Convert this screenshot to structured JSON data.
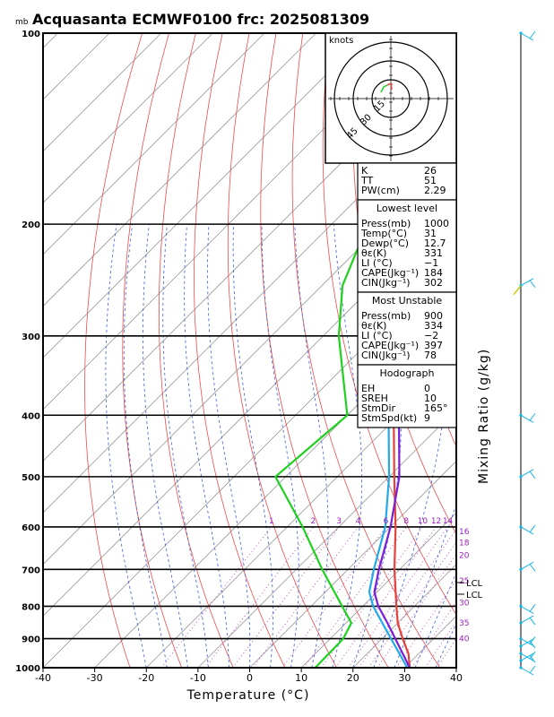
{
  "title": "Acquasanta ECMWF0100  frc: 2025081309",
  "pressure_unit": "mb",
  "x_axis_title": "Temperature (°C)",
  "side_axis_title": "Mixing Ratio  (g/kg)",
  "hodograph": {
    "unit_label": "knots",
    "ring_labels": [
      "15",
      "30",
      "45"
    ]
  },
  "lcl_labels": [
    "LCL",
    "LCL"
  ],
  "indices": {
    "top": [
      {
        "k": "K",
        "v": "26"
      },
      {
        "k": "TT",
        "v": "51"
      },
      {
        "k": "PW(cm)",
        "v": "2.29"
      }
    ],
    "sections": [
      {
        "header": "Lowest level",
        "rows": [
          {
            "k": "Press(mb)",
            "v": "1000"
          },
          {
            "k": "Temp(°C)",
            "v": "31"
          },
          {
            "k": "Dewp(°C)",
            "v": "12.7"
          },
          {
            "k": "θε(K)",
            "v": "331"
          },
          {
            "k": "LI (°C)",
            "v": "−1"
          },
          {
            "k": "CAPE(Jkg⁻¹)",
            "v": "184"
          },
          {
            "k": "CIN(Jkg⁻¹)",
            "v": "302"
          }
        ]
      },
      {
        "header": "Most Unstable",
        "rows": [
          {
            "k": "Press(mb)",
            "v": "900"
          },
          {
            "k": "θε(K)",
            "v": "334"
          },
          {
            "k": "LI (°C)",
            "v": "−2"
          },
          {
            "k": "CAPE(Jkg⁻¹)",
            "v": "397"
          },
          {
            "k": "CIN(Jkg⁻¹)",
            "v": "78"
          }
        ]
      },
      {
        "header": "Hodograph",
        "rows": [
          {
            "k": "EH",
            "v": "0"
          },
          {
            "k": "SREH",
            "v": "10"
          },
          {
            "k": "StmDir",
            "v": "165°"
          },
          {
            "k": "StmSpd(kt)",
            "v": "9"
          }
        ]
      }
    ]
  },
  "chart_data": {
    "type": "line",
    "subtype": "skew-T log-P diagram",
    "title": "Acquasanta ECMWF0100  frc: 2025081309",
    "xlabel": "Temperature (°C)",
    "ylabel": "mb",
    "xlim": [
      -40,
      40
    ],
    "ylim": [
      1000,
      100
    ],
    "x_ticks": [
      -40,
      -30,
      -20,
      -10,
      0,
      10,
      20,
      30,
      40
    ],
    "pressure_levels": [
      100,
      200,
      300,
      400,
      500,
      600,
      700,
      800,
      900,
      1000
    ],
    "mixing_ratio_labels": [
      "1",
      "2",
      "3",
      "4",
      "6",
      "8",
      "10",
      "12",
      "14",
      "16",
      "18",
      "20",
      "25",
      "30",
      "35",
      "40"
    ],
    "colors": {
      "temperature": "#e8403a",
      "dewpoint": "#1fd11f",
      "parcel": "#7a1fd6",
      "virtual": "#22a9ea",
      "isotherm": "#9a9a9a",
      "dry_adiabat": "#ee4b4b",
      "moist_adiabat": "#3b5fd8",
      "mixing_ratio": "#c040c0",
      "wind": "#12b4e6"
    },
    "series": [
      {
        "name": "Temperature",
        "color": "#e8403a",
        "points": [
          [
            1000,
            31
          ],
          [
            950,
            28
          ],
          [
            900,
            24
          ],
          [
            850,
            20
          ],
          [
            800,
            16.5
          ],
          [
            700,
            9
          ],
          [
            600,
            1
          ],
          [
            500,
            -9
          ],
          [
            400,
            -21
          ],
          [
            300,
            -36
          ],
          [
            250,
            -46
          ],
          [
            200,
            -55
          ],
          [
            150,
            -61
          ],
          [
            100,
            -67
          ]
        ]
      },
      {
        "name": "Dewpoint",
        "color": "#1fd11f",
        "points": [
          [
            1000,
            12.7
          ],
          [
            900,
            12.5
          ],
          [
            850,
            11
          ],
          [
            800,
            6
          ],
          [
            700,
            -5
          ],
          [
            600,
            -17
          ],
          [
            500,
            -32
          ],
          [
            400,
            -30
          ],
          [
            300,
            -47
          ],
          [
            250,
            -56
          ],
          [
            200,
            -63
          ],
          [
            100,
            -77
          ]
        ]
      },
      {
        "name": "Parcel",
        "color": "#7a1fd6",
        "points": [
          [
            1000,
            31
          ],
          [
            850,
            18
          ],
          [
            800,
            13
          ],
          [
            760,
            9.5
          ],
          [
            700,
            6
          ],
          [
            600,
            0
          ],
          [
            500,
            -8
          ],
          [
            400,
            -20
          ],
          [
            300,
            -36
          ],
          [
            200,
            -58
          ],
          [
            150,
            -68
          ],
          [
            110,
            -75
          ]
        ]
      },
      {
        "name": "Virtual",
        "color": "#22a9ea",
        "points": [
          [
            1000,
            30.5
          ],
          [
            850,
            17
          ],
          [
            800,
            12
          ],
          [
            760,
            8.5
          ],
          [
            700,
            5
          ],
          [
            600,
            -1
          ],
          [
            500,
            -10
          ],
          [
            400,
            -22
          ],
          [
            300,
            -38
          ],
          [
            200,
            -60
          ],
          [
            150,
            -70
          ],
          [
            110,
            -77
          ]
        ]
      }
    ],
    "lcl_pressures": [
      735,
      760
    ],
    "wind_barbs_pressures": [
      1000,
      975,
      950,
      925,
      900,
      850,
      800,
      700,
      600,
      500,
      400,
      250,
      100
    ]
  }
}
